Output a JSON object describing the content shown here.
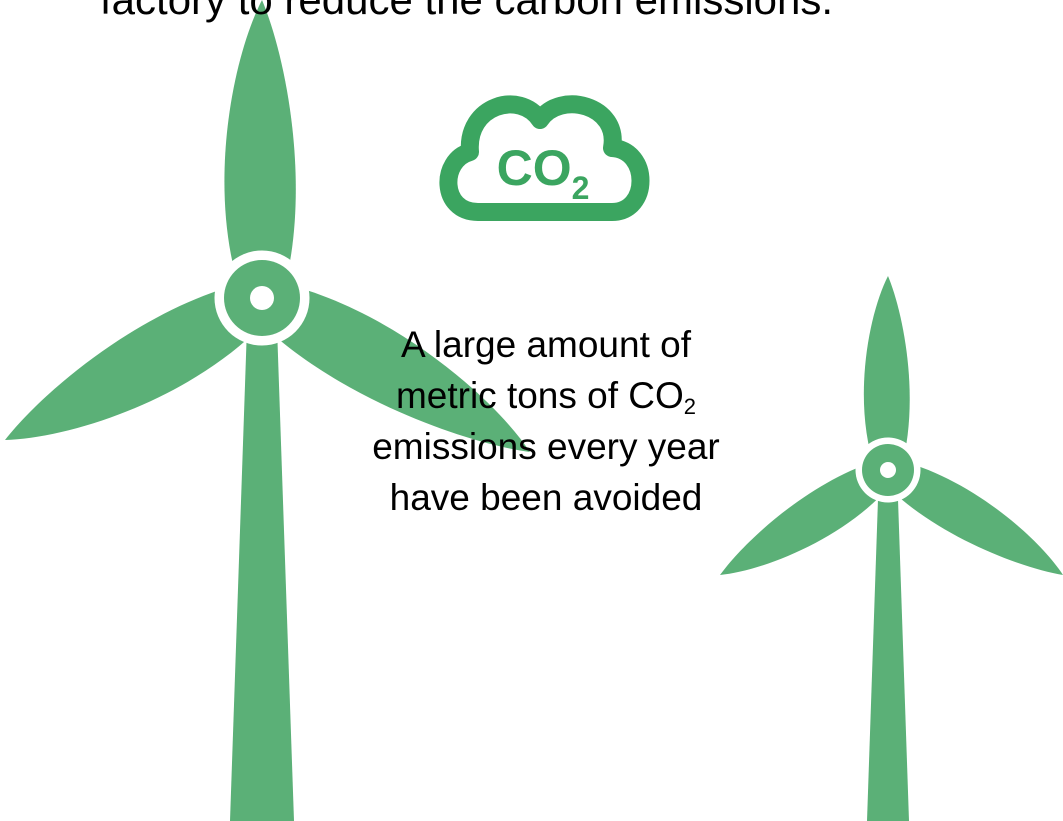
{
  "header_text": "factory to reduce the carbon emissions.",
  "icon": {
    "label": "CO",
    "subscript": "2"
  },
  "body": {
    "lines": [
      {
        "text": "A large amount of"
      },
      {
        "text": "metric tons of CO",
        "subscript": "2"
      },
      {
        "text": "emissions every year"
      },
      {
        "text": "have been avoided"
      }
    ]
  }
}
